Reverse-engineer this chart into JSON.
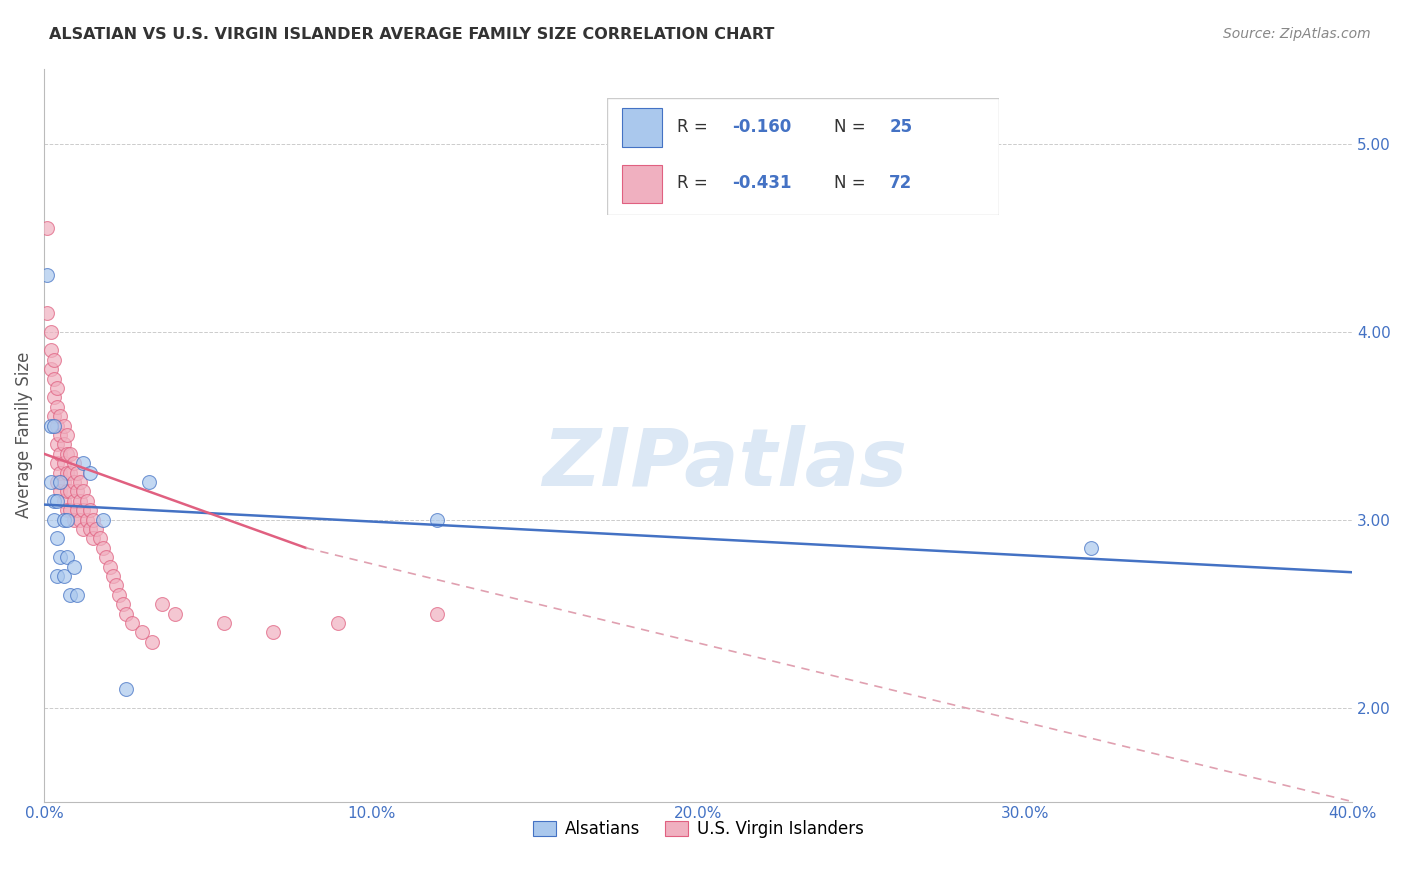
{
  "title": "ALSATIAN VS U.S. VIRGIN ISLANDER AVERAGE FAMILY SIZE CORRELATION CHART",
  "source": "Source: ZipAtlas.com",
  "ylabel": "Average Family Size",
  "right_yticks": [
    2.0,
    3.0,
    4.0,
    5.0
  ],
  "xlim": [
    0.0,
    0.4
  ],
  "ylim": [
    1.5,
    5.4
  ],
  "legend_label1": "Alsatians",
  "legend_label2": "U.S. Virgin Islanders",
  "R1": "-0.160",
  "N1": "25",
  "R2": "-0.431",
  "N2": "72",
  "color_blue": "#aac8ed",
  "color_pink": "#f0b0c0",
  "line_color_blue": "#4472c4",
  "line_color_pink": "#e06080",
  "line_color_pink_dashed": "#e0a0b0",
  "title_color": "#333333",
  "axis_color": "#4472c4",
  "watermark_color": "#dce8f5",
  "alsatians_x": [
    0.001,
    0.002,
    0.002,
    0.003,
    0.003,
    0.003,
    0.004,
    0.004,
    0.004,
    0.005,
    0.005,
    0.006,
    0.006,
    0.007,
    0.007,
    0.008,
    0.009,
    0.01,
    0.012,
    0.014,
    0.018,
    0.025,
    0.032,
    0.12,
    0.32
  ],
  "alsatians_y": [
    4.3,
    3.5,
    3.2,
    3.5,
    3.1,
    3.0,
    3.1,
    2.9,
    2.7,
    3.2,
    2.8,
    3.0,
    2.7,
    3.0,
    2.8,
    2.6,
    2.75,
    2.6,
    3.3,
    3.25,
    3.0,
    2.1,
    3.2,
    3.0,
    2.85
  ],
  "virgins_x": [
    0.001,
    0.001,
    0.002,
    0.002,
    0.002,
    0.003,
    0.003,
    0.003,
    0.003,
    0.004,
    0.004,
    0.004,
    0.004,
    0.004,
    0.004,
    0.005,
    0.005,
    0.005,
    0.005,
    0.005,
    0.006,
    0.006,
    0.006,
    0.006,
    0.006,
    0.007,
    0.007,
    0.007,
    0.007,
    0.007,
    0.008,
    0.008,
    0.008,
    0.008,
    0.009,
    0.009,
    0.009,
    0.009,
    0.01,
    0.01,
    0.01,
    0.011,
    0.011,
    0.011,
    0.012,
    0.012,
    0.012,
    0.013,
    0.013,
    0.014,
    0.014,
    0.015,
    0.015,
    0.016,
    0.017,
    0.018,
    0.019,
    0.02,
    0.021,
    0.022,
    0.023,
    0.024,
    0.025,
    0.027,
    0.03,
    0.033,
    0.036,
    0.04,
    0.055,
    0.07,
    0.09,
    0.12
  ],
  "virgins_y": [
    4.55,
    4.1,
    4.0,
    3.9,
    3.8,
    3.85,
    3.75,
    3.65,
    3.55,
    3.7,
    3.6,
    3.5,
    3.4,
    3.3,
    3.2,
    3.55,
    3.45,
    3.35,
    3.25,
    3.15,
    3.5,
    3.4,
    3.3,
    3.2,
    3.1,
    3.45,
    3.35,
    3.25,
    3.15,
    3.05,
    3.35,
    3.25,
    3.15,
    3.05,
    3.3,
    3.2,
    3.1,
    3.0,
    3.25,
    3.15,
    3.05,
    3.2,
    3.1,
    3.0,
    3.15,
    3.05,
    2.95,
    3.1,
    3.0,
    3.05,
    2.95,
    3.0,
    2.9,
    2.95,
    2.9,
    2.85,
    2.8,
    2.75,
    2.7,
    2.65,
    2.6,
    2.55,
    2.5,
    2.45,
    2.4,
    2.35,
    2.55,
    2.5,
    2.45,
    2.4,
    2.45,
    2.5
  ],
  "xticks": [
    0.0,
    0.1,
    0.2,
    0.3,
    0.4
  ],
  "xticklabels": [
    "0.0%",
    "10.0%",
    "20.0%",
    "30.0%",
    "40.0%"
  ]
}
